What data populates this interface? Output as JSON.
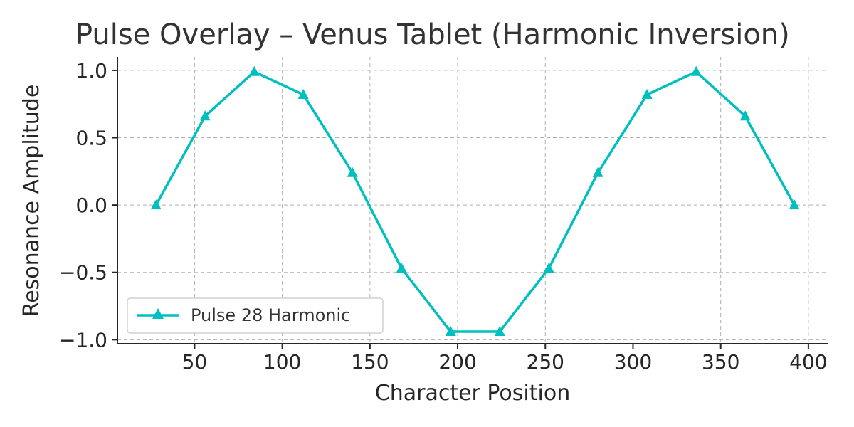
{
  "chart_data": {
    "type": "line",
    "title": "Pulse Overlay – Venus Tablet (Harmonic Inversion)",
    "xlabel": "Character Position",
    "ylabel": "Resonance Amplitude",
    "xlim": [
      6,
      411
    ],
    "ylim": [
      -1.03,
      1.1
    ],
    "xticks": [
      50,
      100,
      150,
      200,
      250,
      300,
      350,
      400
    ],
    "xtick_labels": [
      "50",
      "100",
      "150",
      "200",
      "250",
      "300",
      "350",
      "400"
    ],
    "yticks": [
      1.0,
      0.5,
      0.0,
      -0.5,
      -1.0
    ],
    "ytick_labels": [
      "1.0",
      "0.5",
      "0.0",
      "−0.5",
      "−1.0"
    ],
    "grid": true,
    "legend_position": "lower-left",
    "series": [
      {
        "name": "Pulse 28 Harmonic",
        "color": "#00bfbf",
        "marker": "triangle-up",
        "x": [
          28,
          56,
          84,
          112,
          140,
          168,
          196,
          224,
          252,
          280,
          308,
          336,
          364,
          392
        ],
        "y": [
          0.0,
          0.66,
          0.99,
          0.82,
          0.24,
          -0.47,
          -0.94,
          -0.94,
          -0.47,
          0.24,
          0.82,
          0.99,
          0.66,
          0.0
        ]
      }
    ]
  }
}
